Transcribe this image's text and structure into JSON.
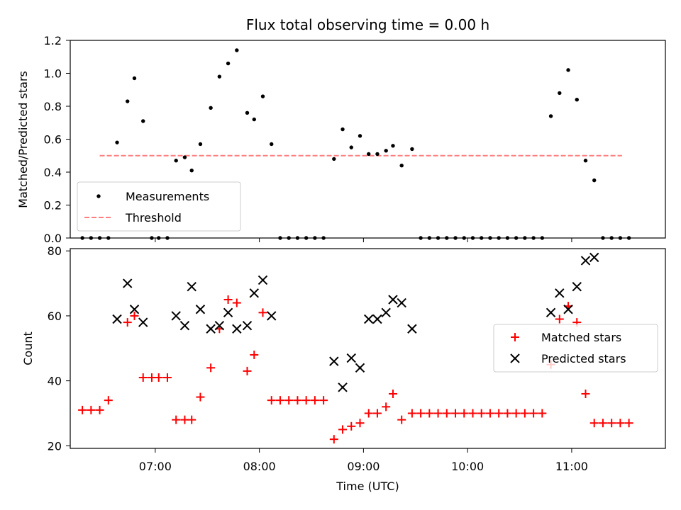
{
  "title": "Flux total observing time = 0.00 h",
  "chart_data": [
    {
      "type": "scatter",
      "ylabel": "Matched/Predicted stars",
      "xlabel": "",
      "xlim": [
        "06:11",
        "11:54"
      ],
      "ylim": [
        0,
        1.2
      ],
      "yticks": [
        0.0,
        0.2,
        0.4,
        0.6,
        0.8,
        1.0,
        1.2
      ],
      "ytick_labels": [
        "0.0",
        "0.2",
        "0.4",
        "0.6",
        "0.8",
        "1.0",
        "1.2"
      ],
      "xticks": [
        "07:00",
        "08:00",
        "09:00",
        "10:00",
        "11:00"
      ],
      "legend": {
        "placement": "lower-left",
        "entries": [
          "Measurements",
          "Threshold"
        ]
      },
      "threshold": {
        "name": "Threshold",
        "value": 0.5,
        "x": [
          "06:28",
          "11:29"
        ],
        "color": "#ff7f7f",
        "style": "dashed"
      },
      "series": [
        {
          "name": "Measurements",
          "color": "#000000",
          "points": [
            [
              "06:18",
              0.0
            ],
            [
              "06:23",
              0.0
            ],
            [
              "06:28",
              0.0
            ],
            [
              "06:33",
              0.0
            ],
            [
              "06:38",
              0.58
            ],
            [
              "06:44",
              0.83
            ],
            [
              "06:48",
              0.97
            ],
            [
              "06:53",
              0.71
            ],
            [
              "06:58",
              0.0
            ],
            [
              "07:02",
              0.0
            ],
            [
              "07:07",
              0.0
            ],
            [
              "07:12",
              0.47
            ],
            [
              "07:17",
              0.49
            ],
            [
              "07:21",
              0.41
            ],
            [
              "07:26",
              0.57
            ],
            [
              "07:32",
              0.79
            ],
            [
              "07:37",
              0.98
            ],
            [
              "07:42",
              1.06
            ],
            [
              "07:47",
              1.14
            ],
            [
              "07:53",
              0.76
            ],
            [
              "07:57",
              0.72
            ],
            [
              "08:02",
              0.86
            ],
            [
              "08:07",
              0.57
            ],
            [
              "08:12",
              0.0
            ],
            [
              "08:17",
              0.0
            ],
            [
              "08:22",
              0.0
            ],
            [
              "08:27",
              0.0
            ],
            [
              "08:32",
              0.0
            ],
            [
              "08:37",
              0.0
            ],
            [
              "08:43",
              0.48
            ],
            [
              "08:48",
              0.66
            ],
            [
              "08:53",
              0.55
            ],
            [
              "08:58",
              0.62
            ],
            [
              "09:03",
              0.51
            ],
            [
              "09:08",
              0.51
            ],
            [
              "09:13",
              0.53
            ],
            [
              "09:17",
              0.56
            ],
            [
              "09:22",
              0.44
            ],
            [
              "09:28",
              0.54
            ],
            [
              "09:33",
              0.0
            ],
            [
              "09:38",
              0.0
            ],
            [
              "09:43",
              0.0
            ],
            [
              "09:48",
              0.0
            ],
            [
              "09:53",
              0.0
            ],
            [
              "09:58",
              0.0
            ],
            [
              "10:03",
              0.0
            ],
            [
              "10:08",
              0.0
            ],
            [
              "10:13",
              0.0
            ],
            [
              "10:18",
              0.0
            ],
            [
              "10:23",
              0.0
            ],
            [
              "10:28",
              0.0
            ],
            [
              "10:33",
              0.0
            ],
            [
              "10:38",
              0.0
            ],
            [
              "10:43",
              0.0
            ],
            [
              "10:48",
              0.74
            ],
            [
              "10:53",
              0.88
            ],
            [
              "10:58",
              1.02
            ],
            [
              "11:03",
              0.84
            ],
            [
              "11:08",
              0.47
            ],
            [
              "11:13",
              0.35
            ],
            [
              "11:18",
              0.0
            ],
            [
              "11:23",
              0.0
            ],
            [
              "11:28",
              0.0
            ],
            [
              "11:33",
              0.0
            ]
          ]
        }
      ]
    },
    {
      "type": "scatter",
      "ylabel": "Count",
      "xlabel": "Time (UTC)",
      "xlim": [
        "06:11",
        "11:54"
      ],
      "ylim": [
        19.2,
        80.7
      ],
      "yticks": [
        20,
        40,
        60,
        80
      ],
      "ytick_labels": [
        "20",
        "40",
        "60",
        "80"
      ],
      "xticks": [
        "07:00",
        "08:00",
        "09:00",
        "10:00",
        "11:00"
      ],
      "xtick_labels": [
        "07:00",
        "08:00",
        "09:00",
        "10:00",
        "11:00"
      ],
      "legend": {
        "placement": "center-right",
        "entries": [
          "Matched stars",
          "Predicted stars"
        ]
      },
      "series": [
        {
          "name": "Matched stars",
          "color": "#ff0000",
          "marker": "plus",
          "points": [
            [
              "06:18",
              31
            ],
            [
              "06:23",
              31
            ],
            [
              "06:28",
              31
            ],
            [
              "06:33",
              34
            ],
            [
              "06:44",
              58
            ],
            [
              "06:48",
              60
            ],
            [
              "06:53",
              41
            ],
            [
              "06:58",
              41
            ],
            [
              "07:02",
              41
            ],
            [
              "07:07",
              41
            ],
            [
              "07:12",
              28
            ],
            [
              "07:17",
              28
            ],
            [
              "07:21",
              28
            ],
            [
              "07:26",
              35
            ],
            [
              "07:32",
              44
            ],
            [
              "07:37",
              56
            ],
            [
              "07:42",
              65
            ],
            [
              "07:47",
              64
            ],
            [
              "07:53",
              43
            ],
            [
              "07:57",
              48
            ],
            [
              "08:02",
              61
            ],
            [
              "08:07",
              34
            ],
            [
              "08:12",
              34
            ],
            [
              "08:17",
              34
            ],
            [
              "08:22",
              34
            ],
            [
              "08:27",
              34
            ],
            [
              "08:32",
              34
            ],
            [
              "08:37",
              34
            ],
            [
              "08:43",
              22
            ],
            [
              "08:48",
              25
            ],
            [
              "08:53",
              26
            ],
            [
              "08:58",
              27
            ],
            [
              "09:03",
              30
            ],
            [
              "09:08",
              30
            ],
            [
              "09:13",
              32
            ],
            [
              "09:17",
              36
            ],
            [
              "09:22",
              28
            ],
            [
              "09:28",
              30
            ],
            [
              "09:33",
              30
            ],
            [
              "09:38",
              30
            ],
            [
              "09:43",
              30
            ],
            [
              "09:48",
              30
            ],
            [
              "09:53",
              30
            ],
            [
              "09:58",
              30
            ],
            [
              "10:03",
              30
            ],
            [
              "10:08",
              30
            ],
            [
              "10:13",
              30
            ],
            [
              "10:18",
              30
            ],
            [
              "10:23",
              30
            ],
            [
              "10:28",
              30
            ],
            [
              "10:33",
              30
            ],
            [
              "10:38",
              30
            ],
            [
              "10:43",
              30
            ],
            [
              "10:48",
              45
            ],
            [
              "10:53",
              59
            ],
            [
              "10:58",
              63
            ],
            [
              "11:03",
              58
            ],
            [
              "11:08",
              36
            ],
            [
              "11:13",
              27
            ],
            [
              "11:18",
              27
            ],
            [
              "11:23",
              27
            ],
            [
              "11:28",
              27
            ],
            [
              "11:33",
              27
            ]
          ]
        },
        {
          "name": "Predicted stars",
          "color": "#000000",
          "marker": "x",
          "points": [
            [
              "06:38",
              59
            ],
            [
              "06:44",
              70
            ],
            [
              "06:48",
              62
            ],
            [
              "06:53",
              58
            ],
            [
              "07:12",
              60
            ],
            [
              "07:17",
              57
            ],
            [
              "07:21",
              69
            ],
            [
              "07:26",
              62
            ],
            [
              "07:32",
              56
            ],
            [
              "07:37",
              57
            ],
            [
              "07:42",
              61
            ],
            [
              "07:47",
              56
            ],
            [
              "07:53",
              57
            ],
            [
              "07:57",
              67
            ],
            [
              "08:02",
              71
            ],
            [
              "08:07",
              60
            ],
            [
              "08:43",
              46
            ],
            [
              "08:48",
              38
            ],
            [
              "08:53",
              47
            ],
            [
              "08:58",
              44
            ],
            [
              "09:03",
              59
            ],
            [
              "09:08",
              59
            ],
            [
              "09:13",
              61
            ],
            [
              "09:17",
              65
            ],
            [
              "09:22",
              64
            ],
            [
              "09:28",
              56
            ],
            [
              "10:48",
              61
            ],
            [
              "10:53",
              67
            ],
            [
              "10:58",
              62
            ],
            [
              "11:03",
              69
            ],
            [
              "11:08",
              77
            ],
            [
              "11:13",
              78
            ]
          ]
        }
      ]
    }
  ]
}
